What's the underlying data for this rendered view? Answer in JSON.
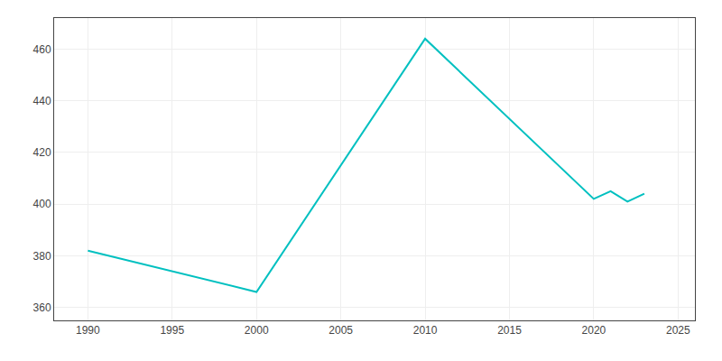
{
  "chart_data": {
    "type": "line",
    "x": [
      1990,
      2000,
      2010,
      2020,
      2021,
      2022,
      2023
    ],
    "values": [
      382,
      366,
      464,
      402,
      405,
      401,
      404
    ],
    "color": "#00C0C0",
    "xlim": [
      1988,
      2026
    ],
    "ylim": [
      355,
      472
    ],
    "xticks": [
      1990,
      1995,
      2000,
      2005,
      2010,
      2015,
      2020,
      2025
    ],
    "yticks": [
      360,
      380,
      400,
      420,
      440,
      460
    ],
    "grid": true
  }
}
